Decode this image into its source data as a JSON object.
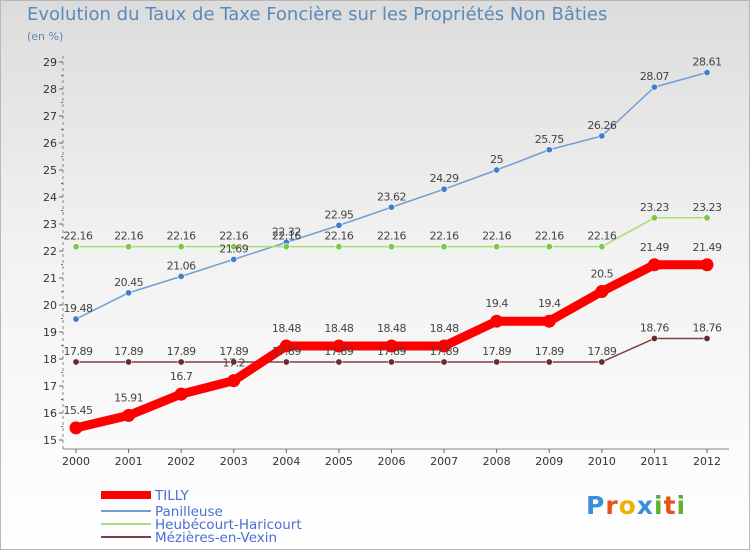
{
  "title": "Evolution du Taux de Taxe Foncière sur les Propriétés Non Bâties",
  "unit_label": "(en %)",
  "logo": {
    "letters": [
      "P",
      "r",
      "o",
      "x",
      "i",
      "t",
      "i"
    ],
    "colors": [
      "#3a8fd8",
      "#e8501a",
      "#f0b000",
      "#3a8fd8",
      "#60b030",
      "#e8501a",
      "#60b030"
    ]
  },
  "chart_data": {
    "type": "line",
    "title": "Evolution du Taux de Taxe Foncière sur les Propriétés Non Bâties",
    "ylabel": "(en %)",
    "xlabel": "",
    "x": [
      "2000",
      "2001",
      "2002",
      "2003",
      "2004",
      "2005",
      "2006",
      "2007",
      "2008",
      "2009",
      "2010",
      "2011",
      "2012"
    ],
    "ylim": [
      15,
      29
    ],
    "yticks": [
      "15",
      "16",
      "17",
      "18",
      "19",
      "20",
      "21",
      "22",
      "23",
      "24",
      "25",
      "26",
      "27",
      "28",
      "29"
    ],
    "grid": false,
    "legend_position": "bottom-left",
    "series": [
      {
        "name": "TILLY",
        "color": "#ff0000",
        "marker_color": "#ff0000",
        "bold": true,
        "values": [
          15.45,
          15.91,
          16.7,
          17.2,
          18.48,
          18.48,
          18.48,
          18.48,
          19.4,
          19.4,
          20.5,
          21.49,
          21.49
        ],
        "labels": [
          "15.45",
          "15.91",
          "16.7",
          "17.2",
          "18.48",
          "18.48",
          "18.48",
          "18.48",
          "19.4",
          "19.4",
          "20.5",
          "21.49",
          "21.49"
        ]
      },
      {
        "name": "Panilleuse",
        "color": "#6f9fd4",
        "marker_color": "#3f7fc8",
        "bold": false,
        "values": [
          19.48,
          20.45,
          21.06,
          21.69,
          22.32,
          22.95,
          23.62,
          24.29,
          25,
          25.75,
          26.26,
          28.07,
          28.61
        ],
        "labels": [
          "19.48",
          "20.45",
          "21.06",
          "21.69",
          "22.32",
          "22.95",
          "23.62",
          "24.29",
          "25",
          "25.75",
          "26.26",
          "28.07",
          "28.61"
        ]
      },
      {
        "name": "Heubécourt-Haricourt",
        "color": "#a8dc78",
        "marker_color": "#7cc84c",
        "bold": false,
        "values": [
          22.16,
          22.16,
          22.16,
          22.16,
          22.16,
          22.16,
          22.16,
          22.16,
          22.16,
          22.16,
          22.16,
          23.23,
          23.23
        ],
        "labels": [
          "22.16",
          "22.16",
          "22.16",
          "22.16",
          "22.16",
          "22.16",
          "22.16",
          "22.16",
          "22.16",
          "22.16",
          "22.16",
          "23.23",
          "23.23"
        ]
      },
      {
        "name": "Mézières-en-Vexin",
        "color": "#804040",
        "marker_color": "#6a2a2a",
        "bold": false,
        "values": [
          17.89,
          17.89,
          17.89,
          17.89,
          17.89,
          17.89,
          17.89,
          17.89,
          17.89,
          17.89,
          17.89,
          18.76,
          18.76
        ],
        "labels": [
          "17.89",
          "17.89",
          "17.89",
          "17.89",
          "17.89",
          "17.89",
          "17.89",
          "17.89",
          "17.89",
          "17.89",
          "17.89",
          "18.76",
          "18.76"
        ]
      }
    ]
  }
}
